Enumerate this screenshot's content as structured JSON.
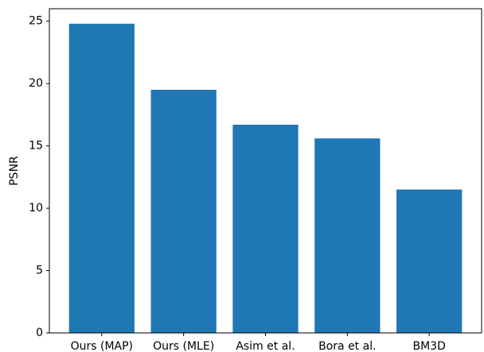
{
  "chart_data": {
    "type": "bar",
    "y_label": "PSNR",
    "categories": [
      "Ours (MAP)",
      "Ours (MLE)",
      "Asim et al.",
      "Bora et al.",
      "BM3D"
    ],
    "values": [
      24.8,
      19.5,
      16.7,
      15.6,
      11.5
    ],
    "color": "#1f77b4",
    "ylim": [
      0,
      26
    ],
    "yticks": [
      0,
      5,
      10,
      15,
      20,
      25
    ],
    "grid": false
  }
}
